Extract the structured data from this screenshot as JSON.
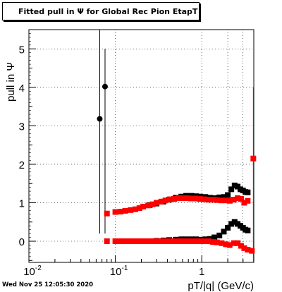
{
  "title": "Fitted pull in  Ψ  for Global Rec Pion EtapT",
  "footer": "Wed Nov 25 12:05:30 2020",
  "chart_data": {
    "type": "scatter",
    "title": "Fitted pull in  Ψ  for Global Rec Pion EtapT",
    "xlabel": "pT/|q| (GeV/c)",
    "ylabel": "pull in  Ψ",
    "xscale": "log",
    "xlim": [
      0.01,
      4.0
    ],
    "ylim": [
      -0.55,
      5.5
    ],
    "x_tick_labels": [
      "10^-2",
      "10^-1",
      "1"
    ],
    "y_tick_labels": [
      "0",
      "1",
      "2",
      "3",
      "4",
      "5"
    ],
    "grid": true,
    "series": [
      {
        "color": "#000000",
        "marker": "circle",
        "x": [
          0.066,
          0.076
        ],
        "y": [
          3.18,
          4.02
        ],
        "yerr_low": [
          2.98,
          3.82
        ],
        "yerr_high": [
          4.4,
          0.98
        ]
      },
      {
        "color": "#000000",
        "marker": "square",
        "x": [
          0.25,
          0.3,
          0.36,
          0.42,
          0.5,
          0.58,
          0.66,
          0.76,
          0.86,
          0.96,
          1.1,
          1.25,
          1.4,
          1.6,
          1.8,
          2.0,
          2.2,
          2.4,
          2.6,
          2.8,
          3.0,
          3.2,
          3.4
        ],
        "y": [
          0.94,
          0.98,
          1.03,
          1.08,
          1.13,
          1.16,
          1.18,
          1.18,
          1.17,
          1.16,
          1.15,
          1.13,
          1.12,
          1.14,
          1.15,
          1.2,
          1.35,
          1.45,
          1.42,
          1.35,
          1.32,
          1.28,
          1.27
        ]
      },
      {
        "color": "#000000",
        "marker": "square",
        "x": [
          0.25,
          0.3,
          0.36,
          0.42,
          0.5,
          0.58,
          0.66,
          0.76,
          0.86,
          0.96,
          1.1,
          1.25,
          1.4,
          1.6,
          1.8,
          2.0,
          2.2,
          2.4,
          2.6,
          2.8,
          3.0,
          3.2,
          3.4
        ],
        "y": [
          0.0,
          0.01,
          0.02,
          0.03,
          0.04,
          0.05,
          0.05,
          0.05,
          0.05,
          0.04,
          0.05,
          0.06,
          0.1,
          0.15,
          0.25,
          0.35,
          0.45,
          0.5,
          0.45,
          0.4,
          0.35,
          0.3,
          0.28
        ]
      },
      {
        "color": "#ff0000",
        "marker": "square",
        "x": [
          0.08,
          0.1,
          0.115,
          0.13,
          0.15,
          0.17,
          0.19,
          0.21,
          0.24,
          0.27,
          0.3,
          0.34,
          0.38,
          0.43,
          0.48,
          0.54,
          0.6,
          0.67,
          0.75,
          0.84,
          0.95,
          1.06,
          1.2,
          1.35,
          1.5,
          1.7,
          1.9,
          2.1,
          2.35,
          2.6,
          2.85,
          3.1,
          3.4,
          3.95
        ],
        "y": [
          0.72,
          0.76,
          0.77,
          0.79,
          0.81,
          0.83,
          0.86,
          0.9,
          0.93,
          0.96,
          1.0,
          1.03,
          1.06,
          1.09,
          1.1,
          1.12,
          1.12,
          1.12,
          1.11,
          1.11,
          1.1,
          1.09,
          1.08,
          1.08,
          1.07,
          1.06,
          1.06,
          1.05,
          1.08,
          1.12,
          1.1,
          1.0,
          1.05,
          2.15
        ],
        "yerr_low": [
          0,
          0,
          0,
          0,
          0,
          0,
          0,
          0,
          0,
          0,
          0,
          0,
          0,
          0,
          0,
          0,
          0,
          0,
          0,
          0,
          0,
          0,
          0,
          0,
          0,
          0,
          0,
          0,
          0,
          0,
          0,
          0,
          0,
          2.7
        ],
        "yerr_high": [
          0,
          0,
          0,
          0,
          0,
          0,
          0,
          0,
          0,
          0,
          0,
          0,
          0,
          0,
          0,
          0,
          0,
          0,
          0,
          0,
          0,
          0,
          0,
          0,
          0,
          0,
          0,
          0,
          0,
          0,
          0,
          0,
          0,
          1.85
        ]
      },
      {
        "color": "#ff0000",
        "marker": "square",
        "x": [
          0.08,
          0.1,
          0.115,
          0.13,
          0.15,
          0.17,
          0.19,
          0.21,
          0.24,
          0.27,
          0.3,
          0.34,
          0.38,
          0.43,
          0.48,
          0.54,
          0.6,
          0.67,
          0.75,
          0.84,
          0.95,
          1.06,
          1.2,
          1.35,
          1.5,
          1.7,
          1.9,
          2.1,
          2.35,
          2.6,
          2.85,
          3.1,
          3.4,
          3.8
        ],
        "y": [
          0.0,
          0.0,
          0.0,
          0.0,
          0.0,
          0.0,
          0.0,
          0.0,
          0.0,
          0.0,
          0.0,
          0.0,
          0.0,
          0.0,
          0.0,
          0.0,
          0.0,
          0.0,
          0.0,
          0.0,
          0.0,
          0.0,
          0.0,
          -0.02,
          -0.03,
          -0.05,
          -0.08,
          -0.1,
          -0.05,
          -0.05,
          -0.12,
          -0.18,
          -0.22,
          -0.25
        ]
      }
    ]
  }
}
